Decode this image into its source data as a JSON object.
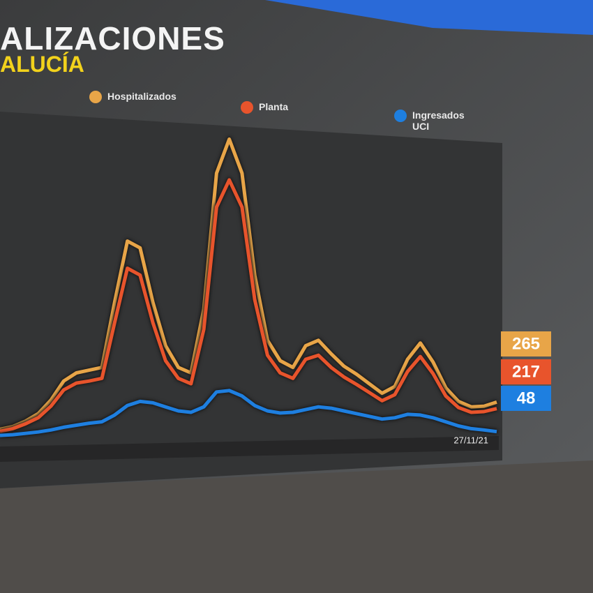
{
  "chart_data": {
    "type": "line",
    "title": "ALIZACIONES",
    "subtitle": "ALUCÍA",
    "x_label": "27/11/21",
    "ylim": [
      0,
      2300
    ],
    "series": [
      {
        "name": "Hospitalizados",
        "color": "#e8a548",
        "values": [
          65,
          85,
          125,
          180,
          280,
          420,
          480,
          500,
          520,
          1000,
          1450,
          1400,
          1000,
          680,
          520,
          480,
          950,
          1950,
          2200,
          1950,
          1200,
          720,
          570,
          520,
          680,
          720,
          620,
          530,
          470,
          400,
          330,
          380,
          580,
          700,
          560,
          370,
          270,
          230,
          235,
          265
        ]
      },
      {
        "name": "Planta",
        "color": "#e8542c",
        "values": [
          50,
          70,
          105,
          150,
          235,
          355,
          405,
          420,
          440,
          850,
          1250,
          1200,
          850,
          570,
          440,
          400,
          800,
          1700,
          1900,
          1700,
          1020,
          610,
          480,
          440,
          580,
          610,
          520,
          450,
          395,
          335,
          275,
          320,
          490,
          600,
          475,
          310,
          225,
          190,
          195,
          217
        ]
      },
      {
        "name": "Ingresados UCI",
        "color": "#1e7fe0",
        "values": [
          20,
          25,
          35,
          45,
          60,
          80,
          95,
          110,
          120,
          170,
          240,
          270,
          260,
          230,
          200,
          190,
          230,
          340,
          350,
          310,
          240,
          200,
          185,
          190,
          210,
          230,
          220,
          200,
          180,
          160,
          140,
          150,
          175,
          170,
          150,
          120,
          90,
          70,
          60,
          48
        ]
      }
    ]
  }
}
